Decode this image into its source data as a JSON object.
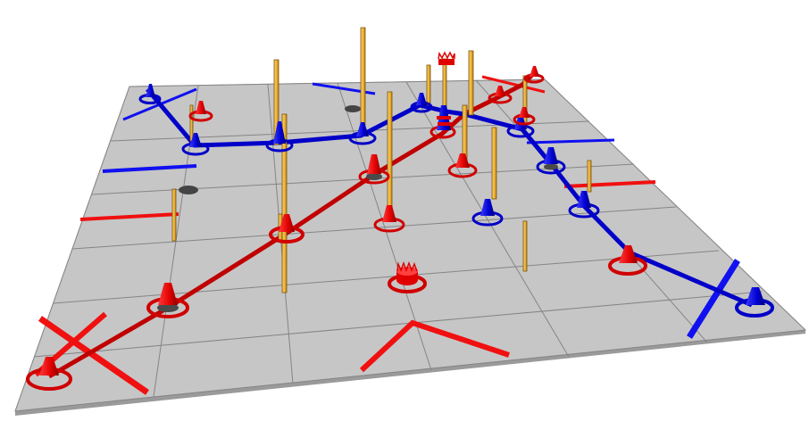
{
  "scene": {
    "kind": "3d-board-game-render",
    "board_grid": "6x6",
    "colors": {
      "board": "#c6c6c6",
      "grid_line": "#8a8a8a",
      "red": "#e00000",
      "dark_red": "#a00000",
      "blue": "#0000d8",
      "dark_blue": "#00008a",
      "pole": "#f2b43a",
      "pole_shade": "#b87f12",
      "socket": "#4a4a4a",
      "empty_socket": "#444444"
    },
    "pieces": {
      "red_cones": 14,
      "blue_cones": 11,
      "crowned_pieces": 2,
      "poles": 15,
      "empty_sockets": 2
    }
  }
}
